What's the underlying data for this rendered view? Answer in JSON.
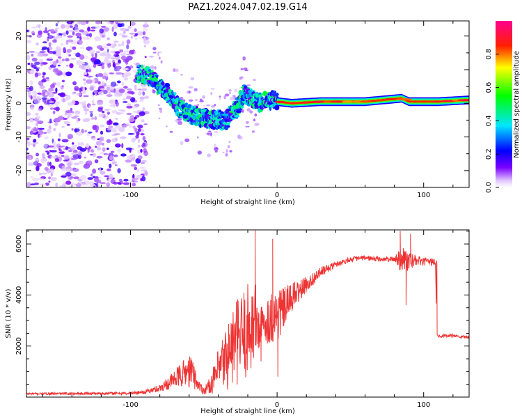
{
  "chart_data": [
    {
      "type": "heatmap",
      "title": "PAZ1.2024.047.02.19.G14",
      "xlabel": "Height of straight line (km)",
      "ylabel": "Frequency (Hz)",
      "xlim": [
        -171,
        131
      ],
      "ylim": [
        -25,
        24.5
      ],
      "xticks": [
        -100,
        0,
        100
      ],
      "yticks": [
        -20,
        -10,
        0,
        10,
        20
      ],
      "colorbar": {
        "label": "Normalized spectral amplitude",
        "range": [
          0,
          1
        ],
        "ticks": [
          0.0,
          0.2,
          0.4,
          0.6,
          0.8
        ],
        "colormap": [
          "#ffffff",
          "#7a00ff",
          "#0000ff",
          "#00ffff",
          "#00ff00",
          "#ffff00",
          "#ff0000",
          "#ff00a0"
        ]
      },
      "ridge": {
        "x": [
          -93,
          -85,
          -75,
          -65,
          -55,
          -45,
          -35,
          -28,
          -22,
          -15,
          -10,
          -5,
          0,
          10,
          30,
          60,
          85,
          90,
          110,
          131
        ],
        "y": [
          9,
          7,
          3,
          -2,
          -4,
          -5,
          -5,
          -2,
          3,
          1,
          0,
          1,
          0.5,
          0,
          0.5,
          0.5,
          1.5,
          0.5,
          0.5,
          1
        ],
        "noise_region_x": [
          -171,
          -93
        ]
      },
      "grid": false
    },
    {
      "type": "line",
      "title": "",
      "xlabel": "Height of straight line (km)",
      "ylabel": "SNR (10 * v/v)",
      "xlim": [
        -171,
        131
      ],
      "ylim": [
        0,
        6550
      ],
      "xticks": [
        -100,
        0,
        100
      ],
      "yticks": [
        2000,
        4000,
        6000
      ],
      "series": [
        {
          "color": "#ee3333",
          "x": [
            -171,
            -100,
            -90,
            -80,
            -70,
            -62,
            -58,
            -54,
            -50,
            -45,
            -40,
            -35,
            -30,
            -25,
            -20,
            -15,
            -12,
            -8,
            -5,
            0,
            5,
            10,
            20,
            30,
            40,
            50,
            60,
            70,
            80,
            85,
            90,
            95,
            100,
            105,
            108,
            109,
            110,
            120,
            131
          ],
          "y": [
            130,
            150,
            200,
            350,
            700,
            1000,
            1000,
            500,
            250,
            500,
            1000,
            1500,
            2000,
            2300,
            2600,
            3000,
            2700,
            2900,
            3100,
            3200,
            3500,
            3900,
            4400,
            4900,
            5200,
            5400,
            5450,
            5400,
            5400,
            5450,
            5300,
            5350,
            5300,
            5300,
            5300,
            2450,
            2400,
            2400,
            2350
          ],
          "noise": [
            40,
            60,
            80,
            150,
            350,
            600,
            650,
            250,
            150,
            350,
            900,
            1300,
            1600,
            1800,
            1900,
            1700,
            900,
            800,
            1000,
            1200,
            800,
            600,
            300,
            200,
            120,
            100,
            100,
            100,
            100,
            600,
            400,
            200,
            150,
            150,
            150,
            60,
            60,
            60,
            60
          ],
          "spikes": [
            [
              -15,
              6550
            ],
            [
              -3,
              6200
            ],
            [
              -11,
              1400
            ],
            [
              0.5,
              800
            ],
            [
              -4,
              2300
            ],
            [
              88,
              3600
            ],
            [
              84,
              6500
            ],
            [
              91,
              6400
            ]
          ]
        }
      ],
      "grid": false
    }
  ]
}
